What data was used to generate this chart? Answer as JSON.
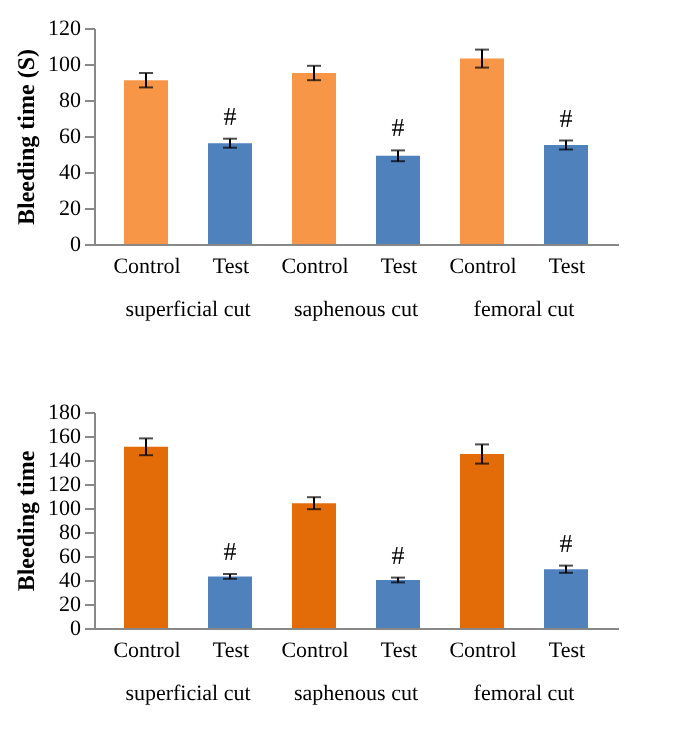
{
  "chart_data": [
    {
      "type": "bar",
      "ylabel": "Bleeding time (S)",
      "categories": [
        "Control",
        "Test",
        "Control",
        "Test",
        "Control",
        "Test"
      ],
      "values": [
        91,
        56,
        95,
        49,
        103,
        55
      ],
      "errors": [
        4,
        2.5,
        4,
        3,
        5,
        2.5
      ],
      "value_labels": [
        null,
        "#",
        null,
        "#",
        null,
        "#"
      ],
      "colors": [
        "#f79646",
        "#4f81bd",
        "#f79646",
        "#4f81bd",
        "#f79646",
        "#4f81bd"
      ],
      "ylim": [
        0,
        120
      ],
      "yticks": [
        0,
        20,
        40,
        60,
        80,
        100,
        120
      ],
      "grid": false,
      "annotations": [
        "superficial cut",
        "saphenous cut",
        "femoral cut"
      ]
    },
    {
      "type": "bar",
      "ylabel": "Bleeding time",
      "categories": [
        "Control",
        "Test",
        "Control",
        "Test",
        "Control",
        "Test"
      ],
      "values": [
        151,
        43,
        104,
        40,
        145,
        49
      ],
      "errors": [
        7,
        2,
        5,
        2,
        8,
        3
      ],
      "value_labels": [
        null,
        "#",
        null,
        "#",
        null,
        "#"
      ],
      "colors": [
        "#e36c09",
        "#4f81bd",
        "#e36c09",
        "#4f81bd",
        "#e36c09",
        "#4f81bd"
      ],
      "ylim": [
        0,
        180
      ],
      "yticks": [
        0,
        20,
        40,
        60,
        80,
        100,
        120,
        140,
        160,
        180
      ],
      "grid": false,
      "annotations": [
        "superficial cut",
        "saphenous cut",
        "femoral cut"
      ]
    }
  ]
}
